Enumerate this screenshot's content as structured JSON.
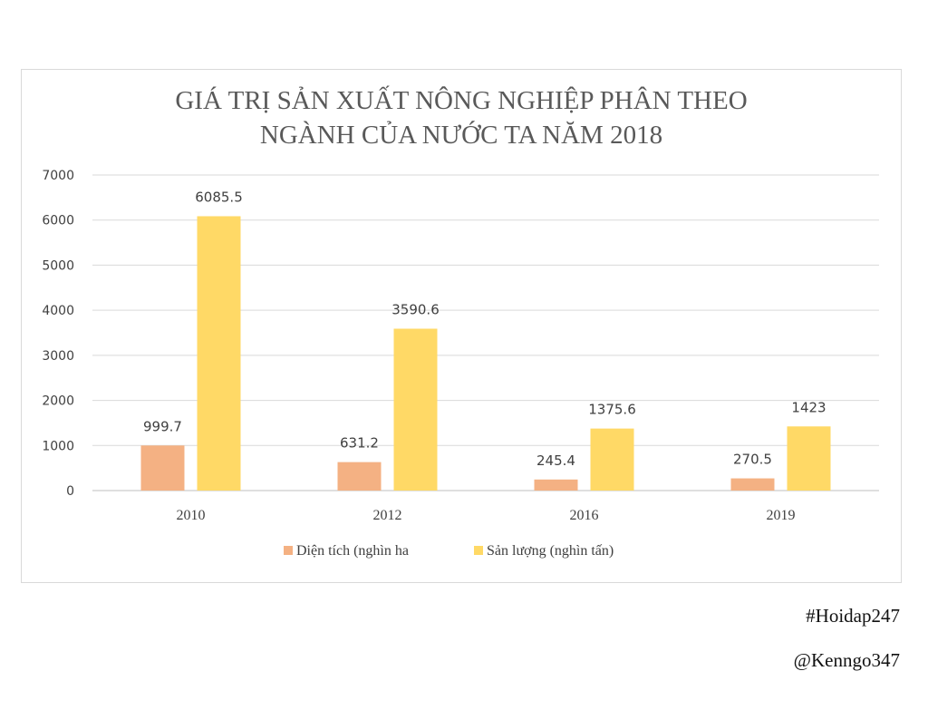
{
  "chart_data": {
    "type": "bar",
    "title_lines": [
      "GIÁ TRỊ SẢN XUẤT NÔNG NGHIỆP PHÂN THEO",
      "NGÀNH CỦA NƯỚC TA NĂM 2018"
    ],
    "categories": [
      "2010",
      "2012",
      "2016",
      "2019"
    ],
    "series": [
      {
        "name": "Diện tích (nghìn ha",
        "color": "#f4b183",
        "values": [
          999.7,
          631.2,
          245.4,
          270.5
        ],
        "labels": [
          "999.7",
          "631.2",
          "245.4",
          "270.5"
        ]
      },
      {
        "name": "Sản lượng (nghìn tấn)",
        "color": "#ffd966",
        "values": [
          6085.5,
          3590.6,
          1375.6,
          1423
        ],
        "labels": [
          "6085.5",
          "3590.6",
          "1375.6",
          "1423"
        ]
      }
    ],
    "ylim": [
      0,
      7000
    ],
    "yticks": [
      "0",
      "1000",
      "2000",
      "3000",
      "4000",
      "5000",
      "6000",
      "7000"
    ],
    "grid": true,
    "legend_position": "bottom"
  },
  "watermarks": {
    "hashtag": "#Hoidap247",
    "handle": "@Kenngo347"
  }
}
